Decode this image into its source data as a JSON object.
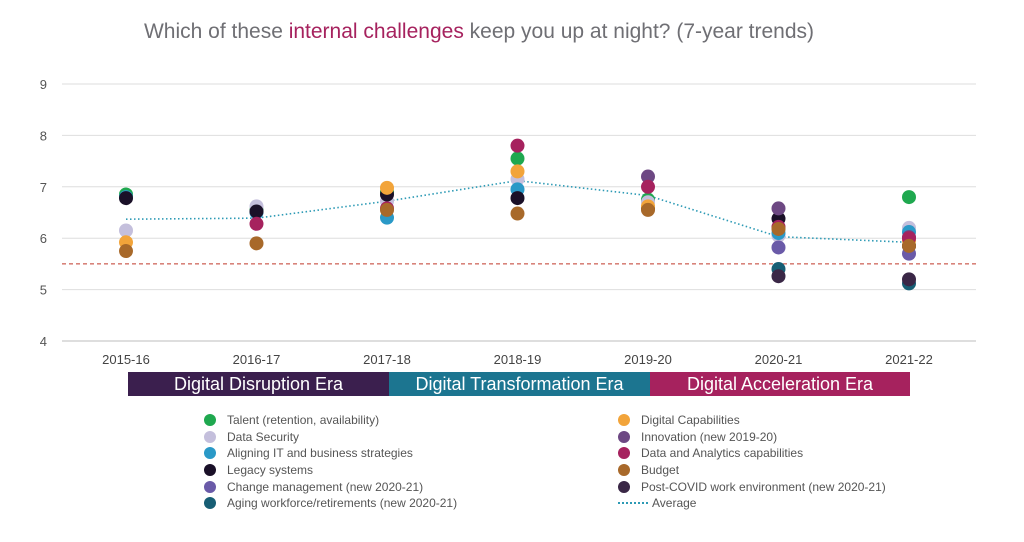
{
  "title": {
    "prefix": "Which of these ",
    "highlight": "internal challenges",
    "suffix": " keep you up at night? (7-year trends)"
  },
  "colors": {
    "highlight": "#a6225e",
    "reference_line": "#c0392b",
    "average_line": "#2d9ab5"
  },
  "eras": [
    {
      "label": "Digital Disruption Era",
      "color": "#3b1f4e"
    },
    {
      "label": "Digital Transformation Era",
      "color": "#1c7590"
    },
    {
      "label": "Digital Acceleration Era",
      "color": "#a6225e"
    }
  ],
  "chart_data": {
    "type": "scatter",
    "title": "Which of these internal challenges keep you up at night? (7-year trends)",
    "categories": [
      "2015-16",
      "2016-17",
      "2017-18",
      "2018-19",
      "2019-20",
      "2020-21",
      "2021-22"
    ],
    "ylim": [
      4,
      9
    ],
    "yticks": [
      "4",
      "5",
      "6",
      "7",
      "8",
      "9"
    ],
    "grid": true,
    "reference_line": 5.5,
    "legend_position": "bottom",
    "series": [
      {
        "name": "Talent (retention, availability)",
        "color": "#1fa84f",
        "values": [
          6.85,
          6.55,
          6.9,
          7.55,
          6.75,
          6.2,
          6.8
        ]
      },
      {
        "name": "Data Security",
        "color": "#c4bfdc",
        "values": [
          6.15,
          6.62,
          6.72,
          7.15,
          6.7,
          6.05,
          6.2
        ]
      },
      {
        "name": "Aligning IT and business strategies",
        "color": "#2a99c7",
        "values": [
          6.8,
          6.5,
          6.4,
          6.95,
          6.6,
          6.1,
          6.12
        ]
      },
      {
        "name": "Legacy systems",
        "color": "#1a1028",
        "values": [
          6.78,
          6.52,
          6.85,
          6.78,
          6.58,
          6.38,
          5.85
        ]
      },
      {
        "name": "Change management (new 2020-21)",
        "color": "#6a5aa8",
        "values": [
          null,
          null,
          null,
          null,
          null,
          5.82,
          5.7
        ]
      },
      {
        "name": "Aging workforce/retirements (new 2020-21)",
        "color": "#175e74",
        "values": [
          null,
          null,
          null,
          null,
          null,
          5.4,
          5.12
        ]
      },
      {
        "name": "Digital Capabilities",
        "color": "#f2a43a",
        "values": [
          5.92,
          null,
          6.98,
          7.3,
          6.62,
          6.2,
          5.95
        ]
      },
      {
        "name": "Innovation (new 2019-20)",
        "color": "#6d4883",
        "values": [
          null,
          null,
          null,
          null,
          7.2,
          6.58,
          6.02
        ]
      },
      {
        "name": "Data and Analytics capabilities",
        "color": "#a6225e",
        "values": [
          null,
          6.28,
          6.58,
          7.8,
          7.0,
          6.22,
          6.0
        ]
      },
      {
        "name": "Budget",
        "color": "#a8692a",
        "values": [
          5.75,
          5.9,
          6.55,
          6.48,
          6.55,
          6.18,
          5.85
        ]
      },
      {
        "name": "Post-COVID work environment (new 2020-21)",
        "color": "#3a2746",
        "values": [
          null,
          null,
          null,
          null,
          null,
          5.26,
          5.2
        ]
      }
    ],
    "average": {
      "name": "Average",
      "values": [
        6.37,
        6.39,
        6.72,
        7.12,
        6.83,
        6.03,
        5.92
      ]
    }
  }
}
